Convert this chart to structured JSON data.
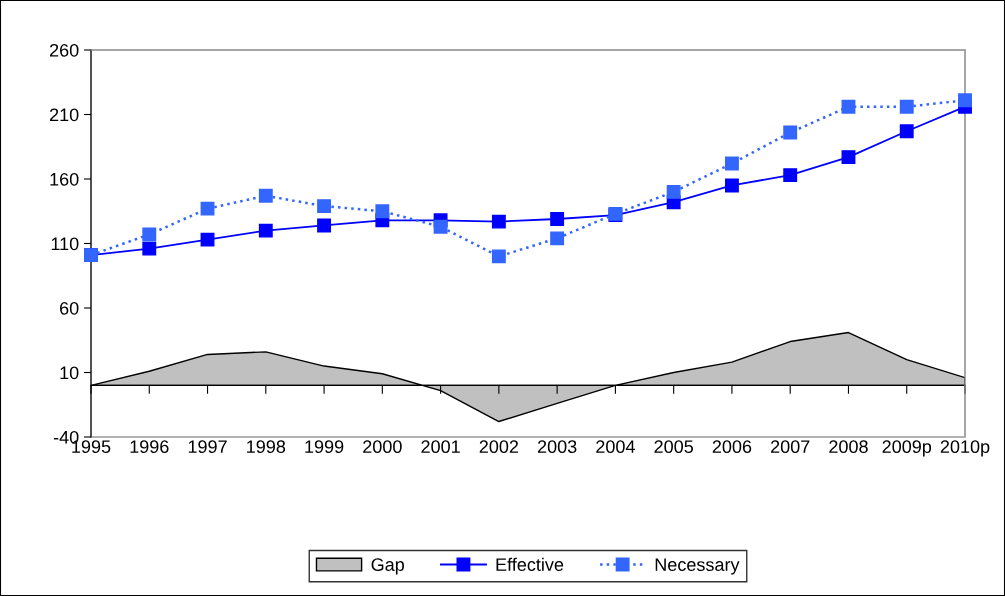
{
  "chart_data": {
    "type": "line",
    "categories": [
      "1995",
      "1996",
      "1997",
      "1998",
      "1999",
      "2000",
      "2001",
      "2002",
      "2003",
      "2004",
      "2005",
      "2006",
      "2007",
      "2008",
      "2009p",
      "2010p"
    ],
    "series": [
      {
        "name": "Gap",
        "type": "area",
        "color": "#c0c0c0",
        "values": [
          0,
          11,
          24,
          26,
          15,
          9,
          -4,
          -28,
          -14,
          0,
          10,
          18,
          34,
          41,
          20,
          6
        ]
      },
      {
        "name": "Effective",
        "color": "#0000ff",
        "line_style": "solid",
        "marker": "square",
        "values": [
          101,
          106,
          113,
          120,
          124,
          128,
          128,
          127,
          129,
          132,
          142,
          155,
          163,
          177,
          197,
          216
        ]
      },
      {
        "name": "Necessary",
        "color": "#3366ff",
        "line_style": "dotted",
        "marker": "square",
        "values": [
          101,
          117,
          137,
          147,
          139,
          135,
          123,
          100,
          114,
          133,
          150,
          172,
          196,
          216,
          216,
          221
        ]
      }
    ],
    "ylim": [
      -40,
      260
    ],
    "yticks": [
      -40,
      10,
      60,
      110,
      160,
      210,
      260
    ],
    "grid": false,
    "legend": "bottom"
  }
}
